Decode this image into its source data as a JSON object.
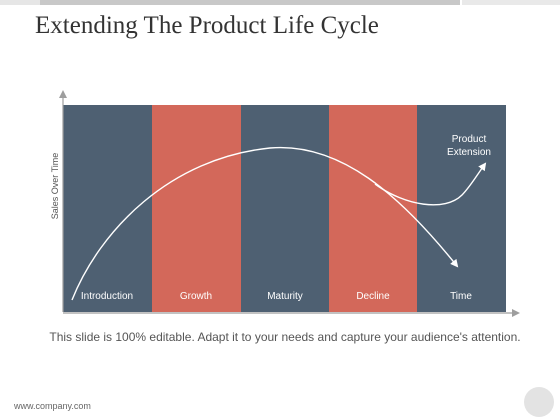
{
  "slide": {
    "title": "Extending The Product Life Cycle",
    "caption": "This slide is 100% editable. Adapt it to your needs and capture your audience's attention.",
    "footer": "www.company.com"
  },
  "diagram": {
    "y_axis_label": "Sales Over Time",
    "stages": [
      {
        "label": "Introduction",
        "color": "#4e6072"
      },
      {
        "label": "Growth",
        "color": "#d3685a"
      },
      {
        "label": "Maturity",
        "color": "#4e6072"
      },
      {
        "label": "Decline",
        "color": "#d3685a"
      },
      {
        "label": "Time",
        "color": "#4e6072"
      }
    ],
    "extension_label_line1": "Product",
    "extension_label_line2": "Extension",
    "curve_color": "#ffffff",
    "axis_color": "#9e9e9e"
  }
}
